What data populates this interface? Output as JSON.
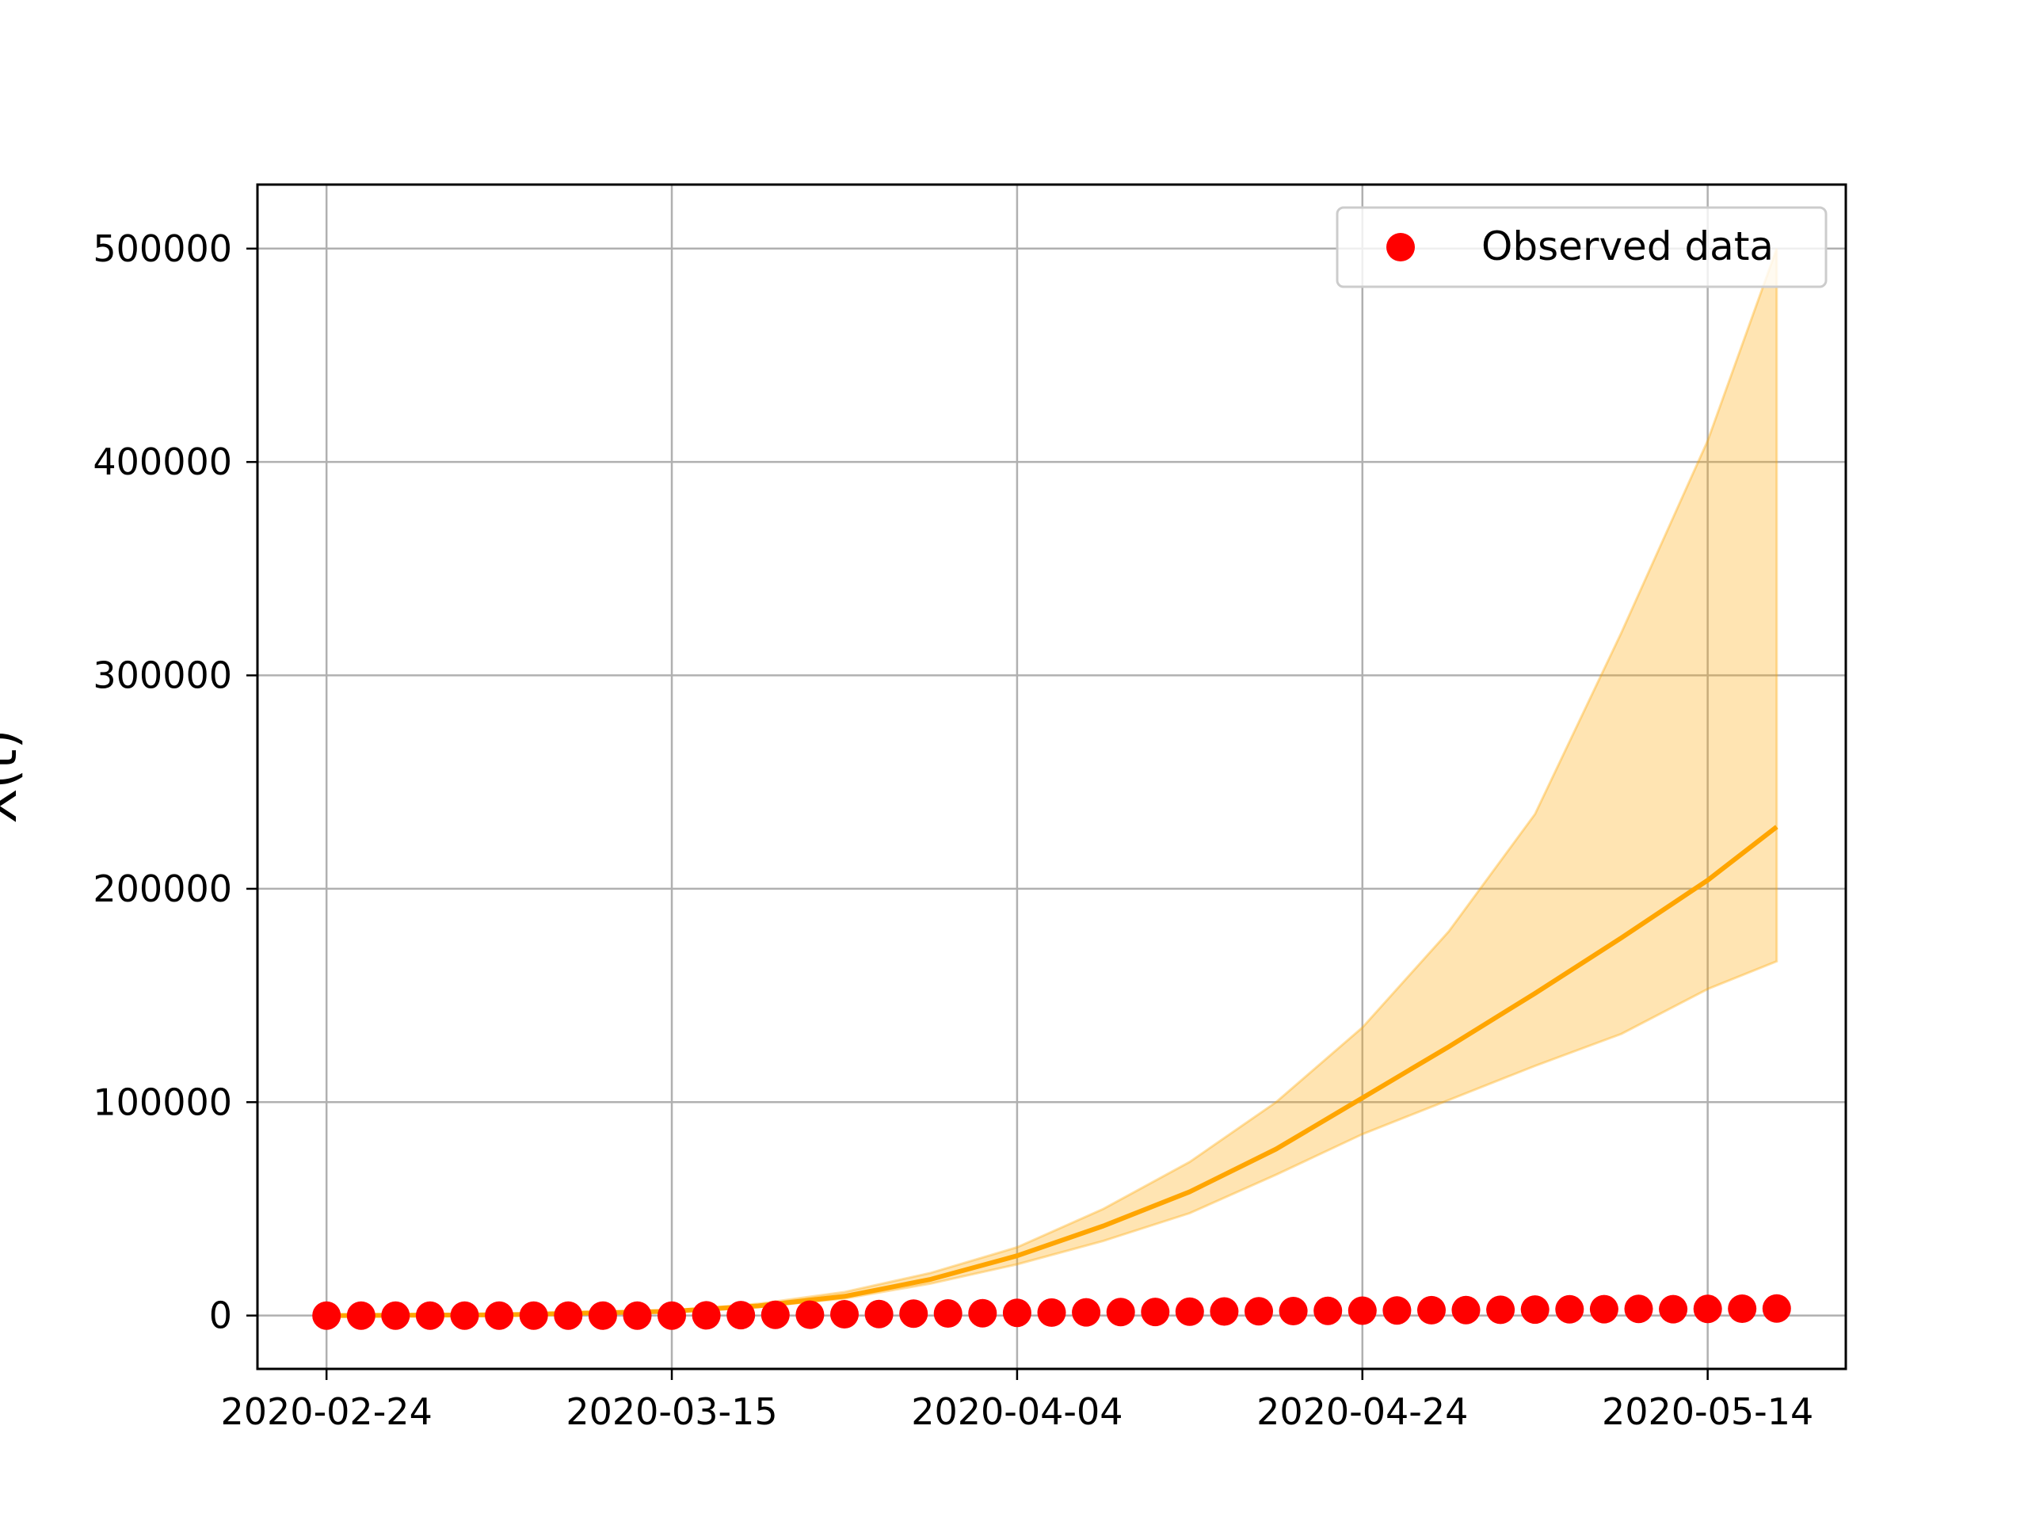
{
  "chart_data": {
    "type": "scatter",
    "ylabel": "X(t)",
    "x_tick_labels": [
      "2020-02-24",
      "2020-03-15",
      "2020-04-04",
      "2020-04-24",
      "2020-05-14"
    ],
    "y_tick_labels": [
      "0",
      "100000",
      "200000",
      "300000",
      "400000",
      "500000"
    ],
    "y_ticks": [
      0,
      100000,
      200000,
      300000,
      400000,
      500000
    ],
    "xlim": [
      "2020-02-20",
      "2020-05-22"
    ],
    "ylim": [
      -25000,
      530000
    ],
    "grid": true,
    "legend": {
      "position": "top-right",
      "entries": [
        {
          "label": "Observed data",
          "color": "#ff0000",
          "marker": "circle"
        }
      ]
    },
    "series": [
      {
        "name": "Observed data",
        "kind": "scatter",
        "color": "#ff0000",
        "points": [
          [
            "2020-02-24",
            0
          ],
          [
            "2020-02-26",
            0
          ],
          [
            "2020-02-28",
            0
          ],
          [
            "2020-03-01",
            0
          ],
          [
            "2020-03-03",
            0
          ],
          [
            "2020-03-05",
            0
          ],
          [
            "2020-03-07",
            0
          ],
          [
            "2020-03-09",
            0
          ],
          [
            "2020-03-11",
            0
          ],
          [
            "2020-03-13",
            0
          ],
          [
            "2020-03-15",
            0
          ],
          [
            "2020-03-17",
            100
          ],
          [
            "2020-03-19",
            200
          ],
          [
            "2020-03-21",
            300
          ],
          [
            "2020-03-23",
            400
          ],
          [
            "2020-03-25",
            600
          ],
          [
            "2020-03-27",
            700
          ],
          [
            "2020-03-29",
            900
          ],
          [
            "2020-03-31",
            1000
          ],
          [
            "2020-04-02",
            1100
          ],
          [
            "2020-04-04",
            1300
          ],
          [
            "2020-04-06",
            1400
          ],
          [
            "2020-04-08",
            1500
          ],
          [
            "2020-04-10",
            1600
          ],
          [
            "2020-04-12",
            1700
          ],
          [
            "2020-04-14",
            1800
          ],
          [
            "2020-04-16",
            1900
          ],
          [
            "2020-04-18",
            2000
          ],
          [
            "2020-04-20",
            2100
          ],
          [
            "2020-04-22",
            2200
          ],
          [
            "2020-04-24",
            2300
          ],
          [
            "2020-04-26",
            2400
          ],
          [
            "2020-04-28",
            2500
          ],
          [
            "2020-04-30",
            2600
          ],
          [
            "2020-05-02",
            2700
          ],
          [
            "2020-05-04",
            2800
          ],
          [
            "2020-05-06",
            2900
          ],
          [
            "2020-05-08",
            3000
          ],
          [
            "2020-05-10",
            3100
          ],
          [
            "2020-05-12",
            3000
          ],
          [
            "2020-05-14",
            3100
          ],
          [
            "2020-05-16",
            3200
          ],
          [
            "2020-05-18",
            3300
          ]
        ]
      },
      {
        "name": "",
        "kind": "line",
        "color": "#ffa500",
        "points": [
          [
            "2020-02-24",
            0
          ],
          [
            "2020-03-05",
            300
          ],
          [
            "2020-03-15",
            2000
          ],
          [
            "2020-03-20",
            4500
          ],
          [
            "2020-03-25",
            9000
          ],
          [
            "2020-03-30",
            17000
          ],
          [
            "2020-04-04",
            28000
          ],
          [
            "2020-04-09",
            42000
          ],
          [
            "2020-04-14",
            58000
          ],
          [
            "2020-04-19",
            78000
          ],
          [
            "2020-04-24",
            102000
          ],
          [
            "2020-04-29",
            126000
          ],
          [
            "2020-05-04",
            151000
          ],
          [
            "2020-05-09",
            177000
          ],
          [
            "2020-05-14",
            204000
          ],
          [
            "2020-05-18",
            229000
          ]
        ]
      },
      {
        "name": "",
        "kind": "band",
        "color": "#ffa500",
        "lower": [
          [
            "2020-02-24",
            0
          ],
          [
            "2020-03-05",
            300
          ],
          [
            "2020-03-15",
            1800
          ],
          [
            "2020-03-20",
            4000
          ],
          [
            "2020-03-25",
            8000
          ],
          [
            "2020-03-30",
            15000
          ],
          [
            "2020-04-04",
            24000
          ],
          [
            "2020-04-09",
            35000
          ],
          [
            "2020-04-14",
            48000
          ],
          [
            "2020-04-19",
            66000
          ],
          [
            "2020-04-24",
            85000
          ],
          [
            "2020-04-29",
            101000
          ],
          [
            "2020-05-04",
            117000
          ],
          [
            "2020-05-09",
            132000
          ],
          [
            "2020-05-14",
            153000
          ],
          [
            "2020-05-18",
            166000
          ]
        ],
        "upper": [
          [
            "2020-02-24",
            0
          ],
          [
            "2020-03-05",
            350
          ],
          [
            "2020-03-15",
            2300
          ],
          [
            "2020-03-20",
            5500
          ],
          [
            "2020-03-25",
            11000
          ],
          [
            "2020-03-30",
            20000
          ],
          [
            "2020-04-04",
            32000
          ],
          [
            "2020-04-09",
            50000
          ],
          [
            "2020-04-14",
            72000
          ],
          [
            "2020-04-19",
            100000
          ],
          [
            "2020-04-24",
            135000
          ],
          [
            "2020-04-29",
            180000
          ],
          [
            "2020-05-04",
            235000
          ],
          [
            "2020-05-09",
            320000
          ],
          [
            "2020-05-14",
            410000
          ],
          [
            "2020-05-18",
            500000
          ]
        ]
      }
    ]
  }
}
